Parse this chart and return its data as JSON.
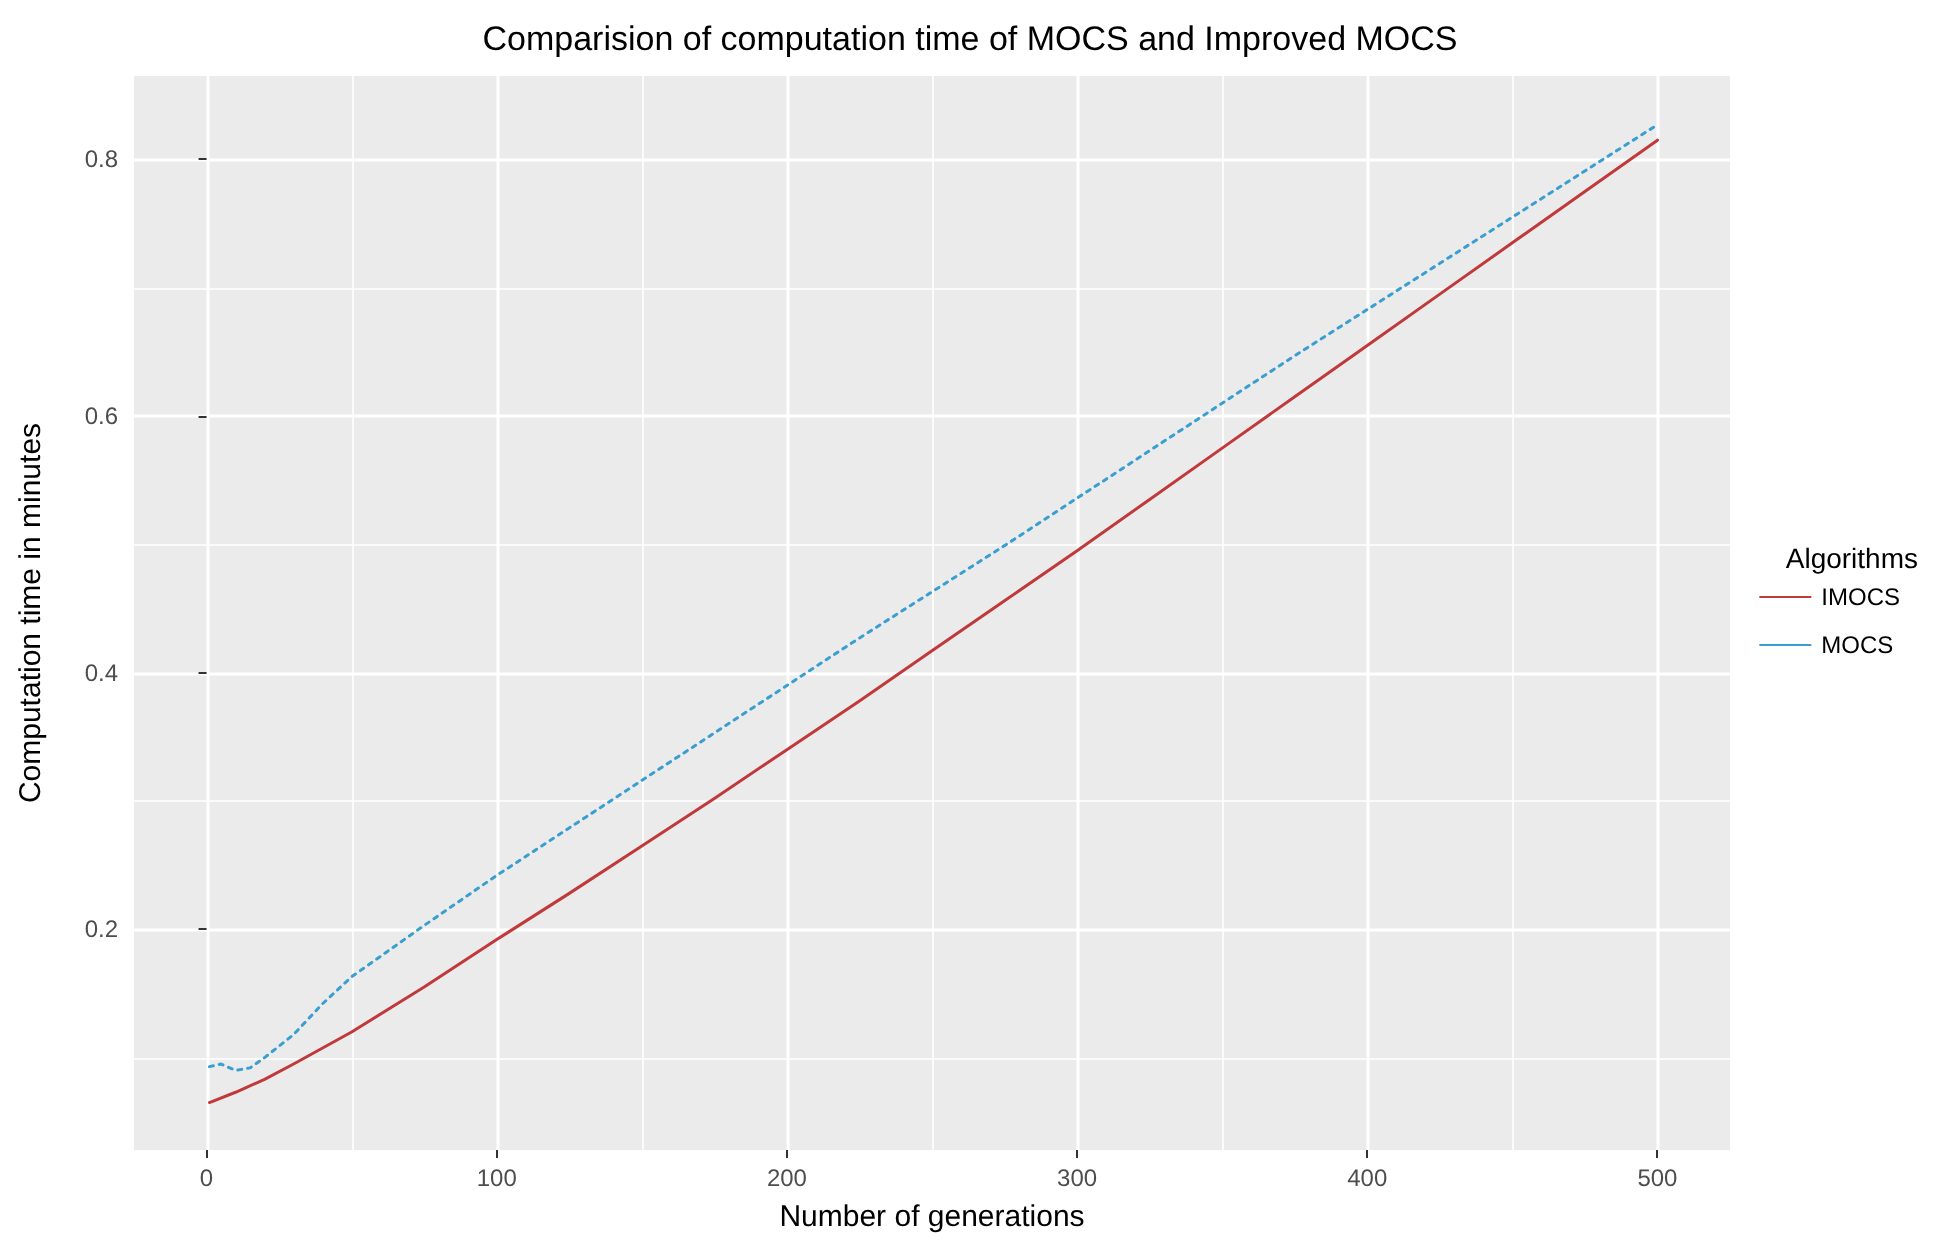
{
  "chart_data": {
    "type": "line",
    "title": "Comparision of computation time of MOCS and Improved MOCS",
    "xlabel": "Number of generations",
    "ylabel": "Computation time in minutes",
    "legend_title": "Algorithms",
    "series": [
      {
        "name": "IMOCS",
        "color": "#c0393b",
        "line_style": "solid",
        "x": [
          1,
          10,
          20,
          30,
          50,
          75,
          100,
          125,
          150,
          175,
          200,
          225,
          250,
          275,
          300,
          325,
          350,
          375,
          400,
          425,
          450,
          475,
          500
        ],
        "values": [
          0.065,
          0.073,
          0.083,
          0.095,
          0.12,
          0.155,
          0.192,
          0.228,
          0.265,
          0.302,
          0.34,
          0.378,
          0.417,
          0.456,
          0.495,
          0.535,
          0.575,
          0.615,
          0.655,
          0.695,
          0.735,
          0.775,
          0.815
        ]
      },
      {
        "name": "MOCS",
        "color": "#3a9fd0",
        "line_style": "dotted",
        "x": [
          1,
          5,
          10,
          15,
          20,
          30,
          40,
          50,
          75,
          100,
          125,
          150,
          175,
          200,
          225,
          250,
          275,
          300,
          325,
          350,
          375,
          400,
          425,
          450,
          475,
          500
        ],
        "values": [
          0.093,
          0.095,
          0.09,
          0.092,
          0.1,
          0.118,
          0.142,
          0.163,
          0.203,
          0.242,
          0.279,
          0.316,
          0.353,
          0.39,
          0.427,
          0.463,
          0.499,
          0.536,
          0.573,
          0.61,
          0.647,
          0.683,
          0.719,
          0.755,
          0.791,
          0.827
        ]
      }
    ],
    "xlim": [
      -25,
      525
    ],
    "xticks": [
      0,
      {
        "value": 50,
        "label": null
      },
      100,
      {
        "value": 150,
        "label": null
      },
      200,
      {
        "value": 250,
        "label": null
      },
      300,
      {
        "value": 350,
        "label": null
      },
      400,
      {
        "value": 450,
        "label": null
      },
      500
    ],
    "ylim": [
      0.028,
      0.865
    ],
    "yticks": [
      {
        "value": 0.1,
        "label": null
      },
      0.2,
      {
        "value": 0.3,
        "label": null
      },
      0.4,
      {
        "value": 0.5,
        "label": null
      },
      0.6,
      {
        "value": 0.7,
        "label": null
      },
      0.8
    ],
    "grid": true,
    "legend": "right",
    "marker": "none"
  }
}
